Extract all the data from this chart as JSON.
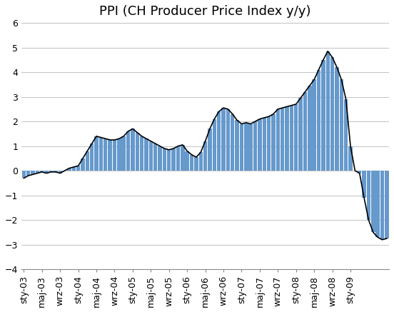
{
  "title": "PPI (CH Producer Price Index y/y)",
  "bar_color": "#6699CC",
  "line_color": "#000000",
  "background_color": "#ffffff",
  "grid_color": "#aaaaaa",
  "ylim": [
    -4,
    6
  ],
  "yticks": [
    -4,
    -3,
    -2,
    -1,
    0,
    1,
    2,
    3,
    4,
    5,
    6
  ],
  "title_fontsize": 13,
  "tick_fontsize": 9,
  "monthly_data": [
    -0.3,
    -0.2,
    -0.15,
    -0.1,
    -0.05,
    -0.1,
    -0.05,
    -0.05,
    -0.1,
    0.0,
    0.1,
    0.15,
    0.2,
    0.5,
    0.8,
    1.1,
    1.4,
    1.35,
    1.3,
    1.25,
    1.25,
    1.3,
    1.4,
    1.6,
    1.7,
    1.55,
    1.4,
    1.3,
    1.2,
    1.1,
    1.0,
    0.9,
    0.85,
    0.9,
    1.0,
    1.05,
    0.8,
    0.65,
    0.55,
    0.75,
    1.2,
    1.7,
    2.1,
    2.4,
    2.55,
    2.5,
    2.3,
    2.05,
    1.9,
    1.95,
    1.9,
    2.0,
    2.1,
    2.15,
    2.2,
    2.3,
    2.5,
    2.55,
    2.6,
    2.65,
    2.7,
    2.95,
    3.2,
    3.45,
    3.7,
    4.1,
    4.5,
    4.85,
    4.6,
    4.2,
    3.7,
    2.9,
    1.0,
    0.0,
    -0.1,
    -1.1,
    -2.0,
    -2.5,
    -2.7,
    -2.8,
    -2.75
  ],
  "tick_labels": [
    "sty-03",
    "maj-03",
    "wrz-03",
    "sty-04",
    "maj-04",
    "wrz-04",
    "sty-05",
    "maj-05",
    "wrz-05",
    "sty-06",
    "maj-06",
    "wrz-06",
    "sty-07",
    "maj-07",
    "wrz-07",
    "sty-08",
    "maj-08",
    "wrz-08",
    "sty-09"
  ],
  "tick_every": 4
}
